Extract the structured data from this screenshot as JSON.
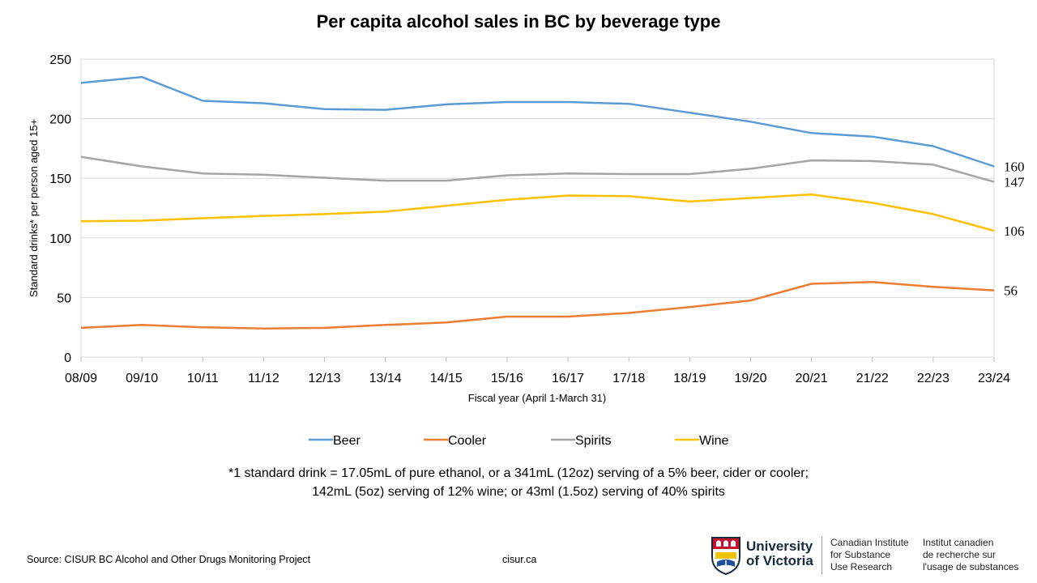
{
  "chart_data": {
    "type": "line",
    "title": "Per capita alcohol sales in BC by beverage type",
    "xlabel": "Fiscal year (April 1-March 31)",
    "ylabel": "Standard drinks* per person aged 15+",
    "ylim": [
      0,
      250
    ],
    "yticks": [
      0,
      50,
      100,
      150,
      200,
      250
    ],
    "grid": true,
    "legend_position": "bottom",
    "categories": [
      "08/09",
      "09/10",
      "10/11",
      "11/12",
      "12/13",
      "13/14",
      "14/15",
      "15/16",
      "16/17",
      "17/18",
      "18/19",
      "19/20",
      "20/21",
      "21/22",
      "22/23",
      "23/24"
    ],
    "series": [
      {
        "name": "Beer",
        "color": "#5b9bd5",
        "values": [
          230,
          235,
          215,
          213,
          208,
          207.5,
          212,
          214,
          214,
          212.5,
          205,
          197.5,
          188,
          185,
          177,
          160
        ],
        "end_label": "160"
      },
      {
        "name": "Cooler",
        "color": "#ed7d31",
        "values": [
          24.5,
          27,
          25,
          24,
          24.5,
          27,
          29,
          34,
          34,
          37,
          42,
          47.5,
          61.5,
          63,
          59,
          56
        ],
        "end_label": "56"
      },
      {
        "name": "Spirits",
        "color": "#a5a5a5",
        "values": [
          168,
          160,
          154,
          153,
          150.5,
          148,
          148,
          152.5,
          154,
          153.5,
          153.5,
          158,
          165,
          164.5,
          161.5,
          147
        ],
        "end_label": "147"
      },
      {
        "name": "Wine",
        "color": "#ffc000",
        "values": [
          114,
          114.5,
          116.5,
          118.5,
          120,
          122,
          127,
          132,
          135.5,
          135,
          130.5,
          133.5,
          136.5,
          129.5,
          120,
          106
        ],
        "end_label": "106"
      }
    ]
  },
  "footnote": {
    "line1": "*1 standard drink = 17.05mL of pure ethanol, or a 341mL (12oz) serving of a 5% beer, cider or cooler;",
    "line2": "142mL (5oz) serving  of 12% wine; or 43ml (1.5oz) serving of 40% spirits"
  },
  "source": "Source: CISUR BC Alcohol and Other Drugs Monitoring Project",
  "website": "cisur.ca",
  "logo": {
    "university_line1": "University",
    "university_line2": "of Victoria",
    "english_line1": "Canadian Institute",
    "english_line2": "for Substance",
    "english_line3": "Use Research",
    "french_line1": "Institut canadien",
    "french_line2": "de recherche sur",
    "french_line3": "l'usage de substances",
    "crest_icon": "university-crest-icon"
  }
}
